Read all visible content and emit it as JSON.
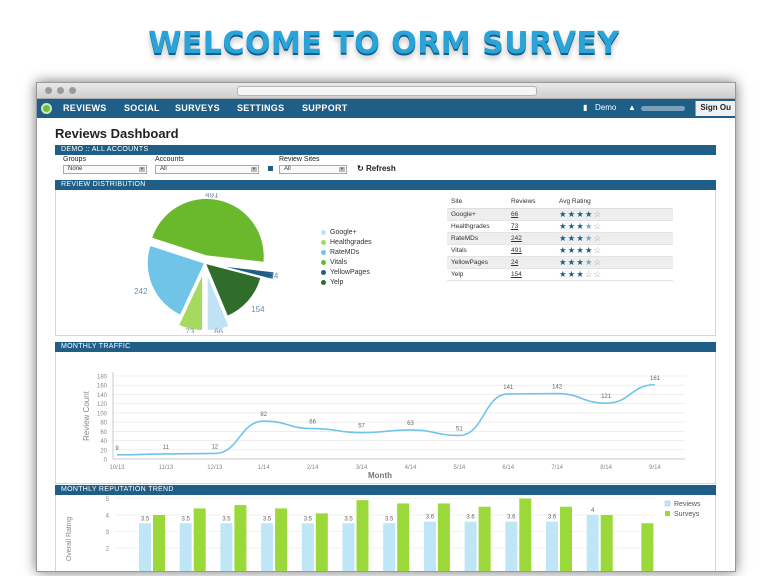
{
  "slide_title": "WELCOME TO ORM SURVEY",
  "nav": {
    "items": [
      "REVIEWS",
      "SOCIAL",
      "SURVEYS",
      "SETTINGS",
      "SUPPORT"
    ],
    "demo": "Demo",
    "sign_out": "Sign Ou"
  },
  "dashboard_title": "Reviews Dashboard",
  "sections": {
    "demo": "DEMO :: ALL ACCOUNTS",
    "distribution": "REVIEW DISTRIBUTION",
    "traffic": "MONTHLY TRAFFIC",
    "trend": "MONTHLY REPUTATION TREND"
  },
  "filters": {
    "groups_label": "Groups",
    "groups_value": "None",
    "accounts_label": "Accounts",
    "accounts_value": "All",
    "sites_label": "Review Sites",
    "sites_value": "All",
    "refresh": "Refresh"
  },
  "table": {
    "headers": [
      "Site",
      "Reviews",
      "Avg Rating"
    ],
    "rows": [
      {
        "site": "Google+",
        "reviews": "66",
        "rating": 4
      },
      {
        "site": "Healthgrades",
        "reviews": "73",
        "rating": 3.5
      },
      {
        "site": "RateMDs",
        "reviews": "242",
        "rating": 3.5
      },
      {
        "site": "Vitals",
        "reviews": "491",
        "rating": 4
      },
      {
        "site": "YellowPages",
        "reviews": "24",
        "rating": 3.5
      },
      {
        "site": "Yelp",
        "reviews": "154",
        "rating": 3
      }
    ]
  },
  "colors": {
    "nav": "#1f5e86",
    "google": "#bfe3f4",
    "healthgrades": "#a6d95f",
    "ratemds": "#6fc4e8",
    "vitals": "#6ab92c",
    "yellowpages": "#1f5e86",
    "yelp": "#2f6e2a",
    "line": "#6fc4e8",
    "reviews_bar": "#bfe6f6",
    "surveys_bar": "#9bd93a"
  },
  "chart_data": [
    {
      "type": "pie",
      "categories": [
        "Google+",
        "Healthgrades",
        "RateMDs",
        "Vitals",
        "YellowPages",
        "Yelp"
      ],
      "values": [
        66,
        73,
        242,
        491,
        24,
        154
      ],
      "legend": "right"
    },
    {
      "type": "line",
      "x": [
        "10/13",
        "11/13",
        "12/13",
        "1/14",
        "2/14",
        "3/14",
        "4/14",
        "5/14",
        "6/14",
        "7/14",
        "8/14",
        "9/14"
      ],
      "values": [
        9,
        11,
        12,
        82,
        66,
        57,
        63,
        51,
        141,
        142,
        121,
        161
      ],
      "xlabel": "Month",
      "ylabel": "Review Count",
      "ylim": [
        0,
        180
      ],
      "yticks": [
        0,
        20,
        40,
        60,
        80,
        100,
        120,
        140,
        160,
        180
      ],
      "grid": true
    },
    {
      "type": "bar",
      "series": [
        {
          "name": "Reviews",
          "values": [
            3.5,
            3.5,
            3.5,
            3.5,
            3.5,
            3.5,
            3.5,
            3.6,
            3.6,
            3.6,
            3.6,
            4.0,
            null
          ]
        },
        {
          "name": "Surveys",
          "values": [
            4.0,
            4.4,
            4.6,
            4.4,
            4.1,
            4.9,
            4.7,
            4.7,
            4.5,
            5.0,
            4.5,
            4.0,
            3.5
          ]
        }
      ],
      "labels": [
        "3.5",
        "3.5",
        "3.5",
        "3.5",
        "3.5",
        "3.5",
        "3.5",
        "3.6",
        "3.6",
        "3.6",
        "3.6",
        "4",
        ""
      ],
      "ylabel": "Overall Rating",
      "ylim": [
        0,
        5
      ],
      "yticks": [
        2,
        3,
        4,
        5
      ],
      "legend": "top-right"
    }
  ]
}
